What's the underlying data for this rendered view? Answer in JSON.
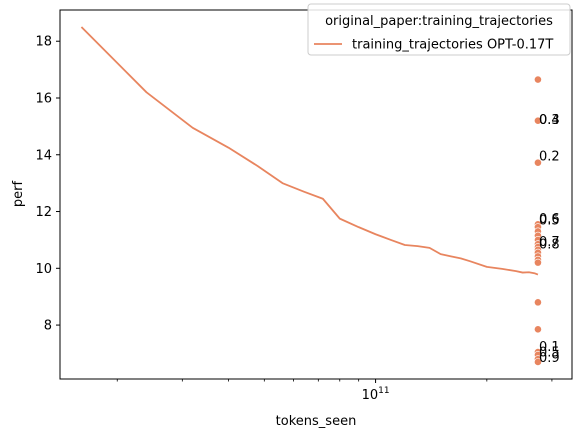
{
  "chart_data": {
    "type": "line",
    "xlabel": "tokens_seen",
    "ylabel": "perf",
    "xscale": "log",
    "xlim": [
      14000000000,
      340000000000
    ],
    "ylim": [
      6.1,
      19.1
    ],
    "grid": false,
    "x_major_tick": {
      "value": 100000000000,
      "label_base": "10",
      "label_exp": "11"
    },
    "y_ticks": [
      8,
      10,
      12,
      14,
      16,
      18
    ],
    "y_tick_labels": [
      "8",
      "10",
      "12",
      "14",
      "16",
      "18"
    ],
    "legend": {
      "placement": "upper-right",
      "title": "original_paper:training_trajectories",
      "entries": [
        "training_trajectories OPT-0.17T"
      ]
    },
    "series": [
      {
        "name": "training_trajectories OPT-0.17T",
        "color": "#e8855f",
        "x": [
          16000000000,
          24000000000,
          32000000000,
          40000000000,
          48000000000,
          56000000000,
          64000000000,
          72000000000,
          80000000000,
          90000000000,
          100000000000,
          110000000000,
          120000000000,
          130000000000,
          140000000000,
          150000000000,
          160000000000,
          170000000000,
          180000000000,
          200000000000,
          220000000000,
          240000000000,
          250000000000,
          260000000000,
          270000000000,
          275000000000
        ],
        "y": [
          18.5,
          16.2,
          14.95,
          14.25,
          13.6,
          13.0,
          12.7,
          12.45,
          11.75,
          11.45,
          11.2,
          11.0,
          10.82,
          10.78,
          10.72,
          10.5,
          10.42,
          10.35,
          10.25,
          10.05,
          9.98,
          9.9,
          9.85,
          9.86,
          9.82,
          9.78
        ]
      }
    ],
    "scatter": {
      "color": "#e8855f",
      "x": 275000000000,
      "y": [
        16.65,
        15.2,
        13.72,
        11.55,
        11.45,
        11.3,
        11.15,
        11.0,
        10.85,
        10.75,
        10.65,
        10.55,
        10.42,
        10.3,
        10.2,
        8.8,
        7.85,
        7.05,
        6.95,
        6.8,
        6.7
      ]
    },
    "annotations": [
      {
        "text": "0.4",
        "x": 275000000000,
        "y": 15.25
      },
      {
        "text": "0.3",
        "x": 275000000000,
        "y": 15.25
      },
      {
        "text": "0.2",
        "x": 275000000000,
        "y": 13.95
      },
      {
        "text": "0.6",
        "x": 275000000000,
        "y": 11.75
      },
      {
        "text": "0.5",
        "x": 275000000000,
        "y": 11.7
      },
      {
        "text": "0.7",
        "x": 275000000000,
        "y": 10.95
      },
      {
        "text": "0.8",
        "x": 275000000000,
        "y": 10.85
      },
      {
        "text": "0.1",
        "x": 275000000000,
        "y": 7.25
      },
      {
        "text": "0.5",
        "x": 275000000000,
        "y": 7.05
      },
      {
        "text": "0.9",
        "x": 275000000000,
        "y": 6.85
      }
    ]
  }
}
